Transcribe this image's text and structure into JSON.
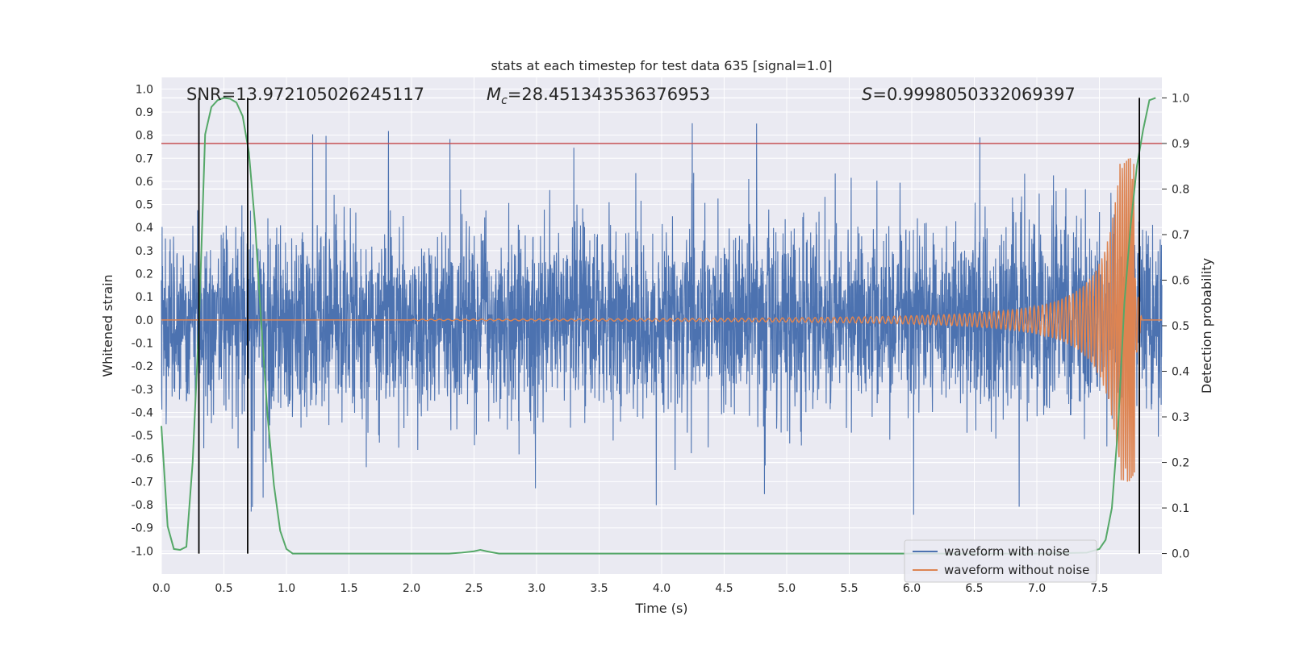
{
  "chart_data": {
    "type": "line",
    "title": "stats at each timestep for test data 635 [signal=1.0]",
    "xlabel": "Time (s)",
    "ylabel": "Whitened strain",
    "ylabel_right": "Detection probability",
    "xlim": [
      0.0,
      8.0
    ],
    "ylim": [
      -1.1,
      1.05
    ],
    "ylim_right": [
      -0.045,
      1.045
    ],
    "x_ticks": [
      "0.0",
      "0.5",
      "1.0",
      "1.5",
      "2.0",
      "2.5",
      "3.0",
      "3.5",
      "4.0",
      "4.5",
      "5.0",
      "5.5",
      "6.0",
      "6.5",
      "7.0",
      "7.5"
    ],
    "y_ticks": [
      "1.0",
      "0.9",
      "0.8",
      "0.7",
      "0.6",
      "0.5",
      "0.4",
      "0.3",
      "0.2",
      "0.1",
      "0.0",
      "-0.1",
      "-0.2",
      "-0.3",
      "-0.4",
      "-0.5",
      "-0.6",
      "-0.7",
      "-0.8",
      "-0.9",
      "-1.0"
    ],
    "y_right_ticks": [
      "1.0",
      "0.9",
      "0.8",
      "0.7",
      "0.6",
      "0.5",
      "0.4",
      "0.3",
      "0.2",
      "0.1",
      "0.0"
    ],
    "annotations": {
      "snr": "SNR=13.972105026245117",
      "mc_symbol": "M",
      "mc_sub": "c",
      "mc_value": "=28.451343536376953",
      "s_symbol": "S",
      "s_value": "=0.9998050332069397"
    },
    "threshold_right": 0.9,
    "vertical_lines_x": [
      0.3,
      0.69,
      7.82
    ],
    "legend": {
      "noise": "waveform with noise",
      "clean": "waveform without noise",
      "position": "lower-right"
    },
    "colors": {
      "noise": "#4c72b0",
      "clean": "#dd8452",
      "probability": "#55a868",
      "threshold": "#c44e52",
      "vlines": "#000000",
      "background": "#eaeaf2",
      "grid": "#ffffff"
    },
    "series": [
      {
        "name": "waveform with noise",
        "axis": "left",
        "description": "dense noisy whitened strain, spikes mostly within -0.6..0.6",
        "envelope": {
          "upper_typical": 0.4,
          "lower_typical": -0.45,
          "max": 0.86,
          "min": -0.86
        }
      },
      {
        "name": "waveform without noise",
        "axis": "left",
        "chirp": {
          "start_x": 2.0,
          "end_x": 7.78,
          "start_amp": 0.003,
          "peak_amp": 0.7,
          "start_freq": 9,
          "end_freq": 75
        }
      },
      {
        "name": "detection probability",
        "axis": "right",
        "x": [
          0.0,
          0.05,
          0.1,
          0.15,
          0.2,
          0.25,
          0.3,
          0.35,
          0.4,
          0.45,
          0.5,
          0.55,
          0.6,
          0.65,
          0.7,
          0.75,
          0.8,
          0.85,
          0.9,
          0.95,
          1.0,
          1.05,
          1.1,
          1.5,
          2.0,
          2.3,
          2.4,
          2.5,
          2.55,
          2.6,
          2.7,
          3.0,
          4.0,
          5.0,
          6.0,
          7.0,
          7.4,
          7.5,
          7.55,
          7.6,
          7.65,
          7.7,
          7.75,
          7.8,
          7.85,
          7.9,
          7.95
        ],
        "values": [
          0.28,
          0.06,
          0.01,
          0.008,
          0.015,
          0.2,
          0.5,
          0.92,
          0.98,
          0.995,
          1.0,
          0.998,
          0.99,
          0.96,
          0.88,
          0.72,
          0.5,
          0.3,
          0.15,
          0.05,
          0.01,
          0.0,
          0.0,
          0.0,
          0.0,
          0.0,
          0.002,
          0.005,
          0.008,
          0.005,
          0.0,
          0.0,
          0.0,
          0.0,
          0.0,
          0.0,
          0.002,
          0.01,
          0.03,
          0.1,
          0.28,
          0.55,
          0.72,
          0.85,
          0.93,
          0.995,
          1.0
        ]
      }
    ]
  }
}
